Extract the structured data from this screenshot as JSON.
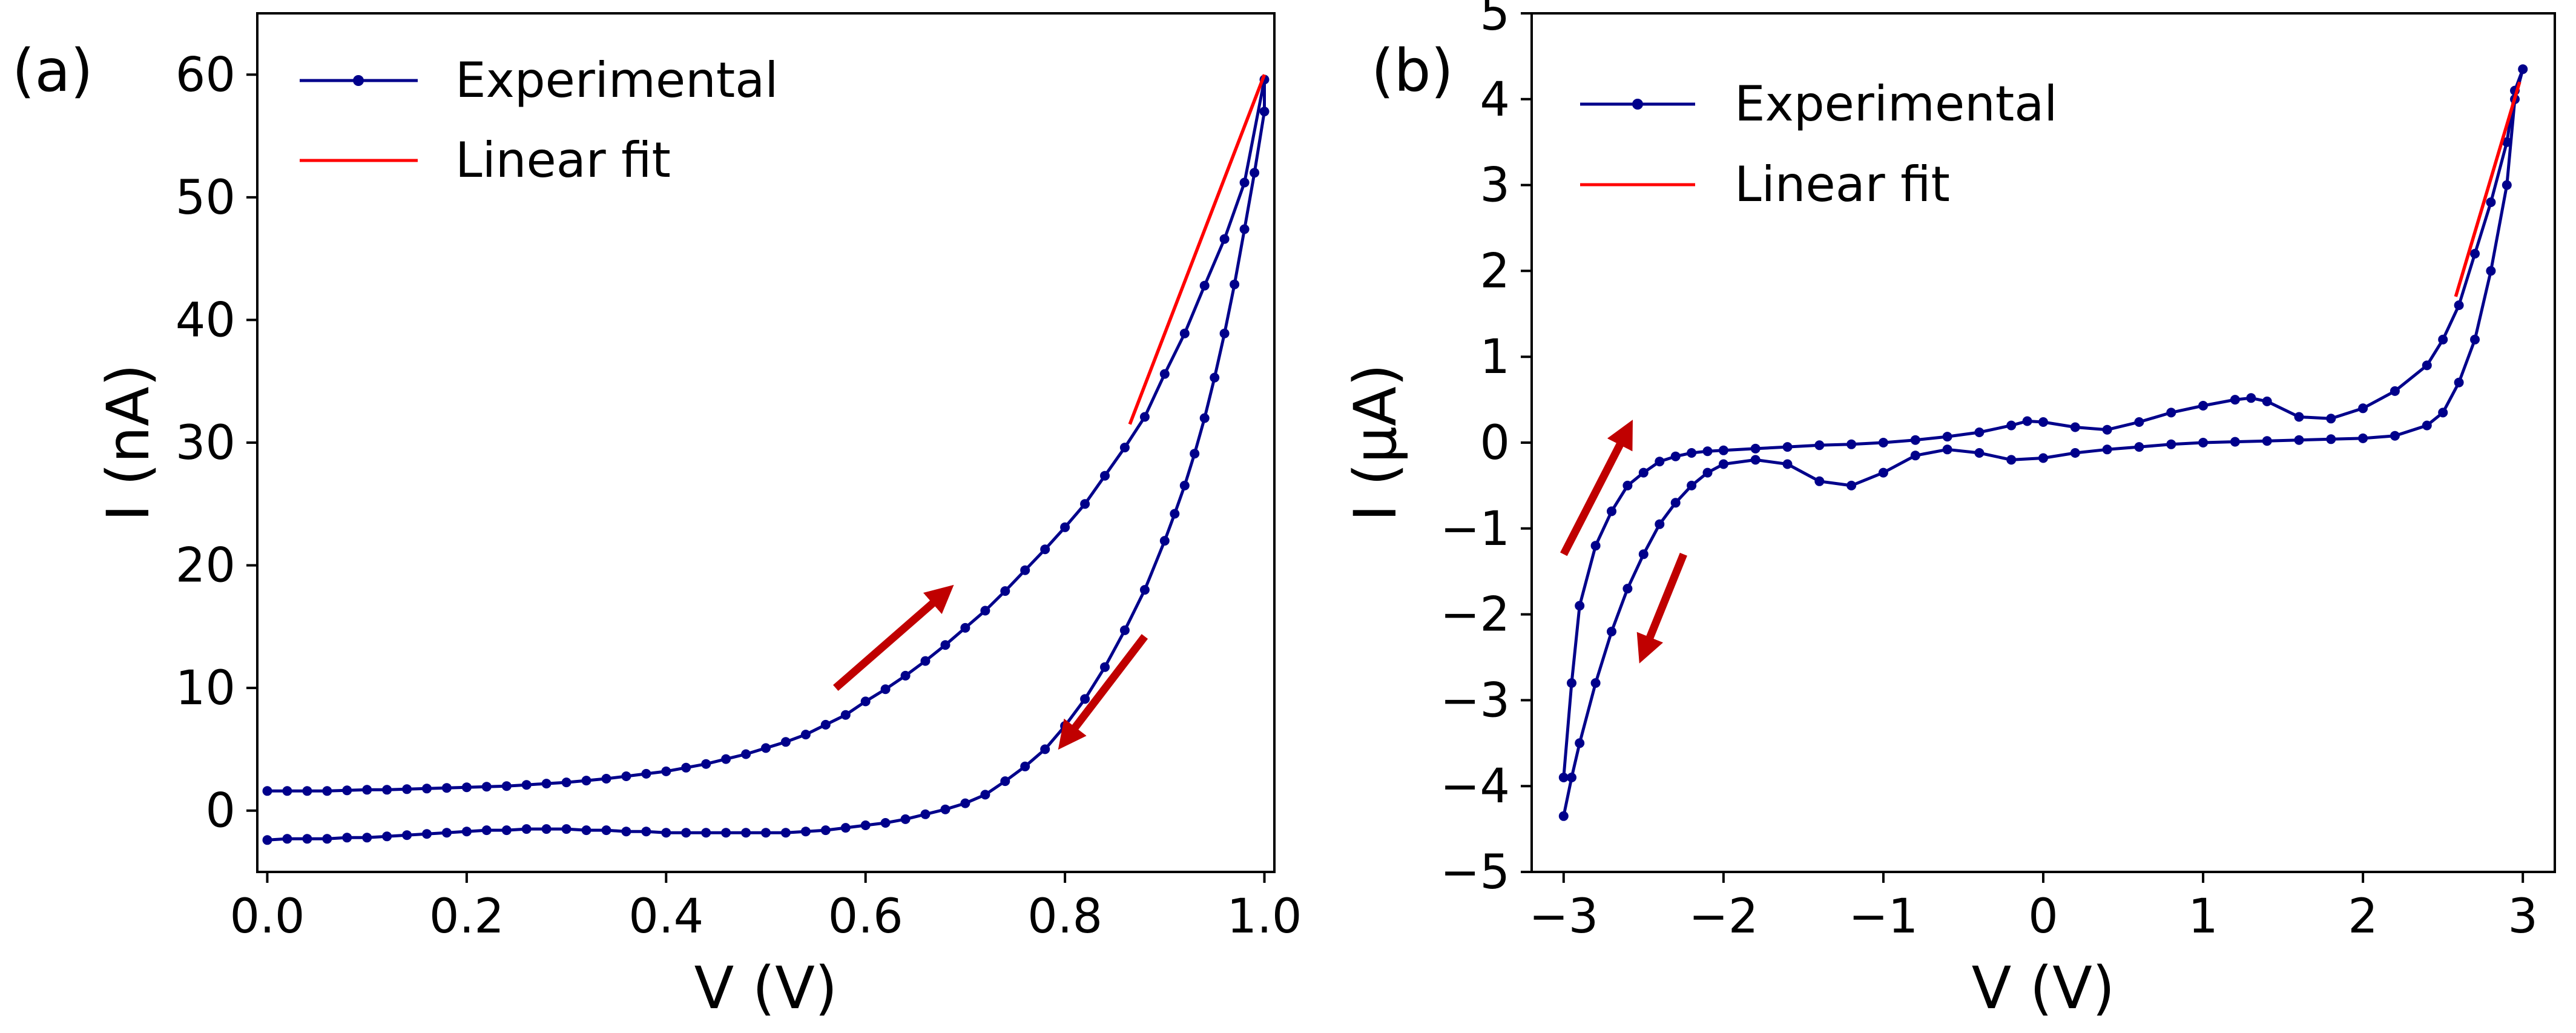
{
  "colors": {
    "experimental": "#00008b",
    "fit": "#ff0000",
    "arrow": "#c00000",
    "axis": "#000000"
  },
  "chart_data": [
    {
      "panel": "(a)",
      "type": "line",
      "xlabel": "V (V)",
      "ylabel": "I (nA)",
      "xlim": [
        -0.01,
        1.01
      ],
      "ylim": [
        -5,
        65
      ],
      "xticks": [
        0.0,
        0.2,
        0.4,
        0.6,
        0.8,
        1.0
      ],
      "xtick_labels": [
        "0.0",
        "0.2",
        "0.4",
        "0.6",
        "0.8",
        "1.0"
      ],
      "yticks": [
        0,
        10,
        20,
        30,
        40,
        50,
        60
      ],
      "ytick_labels": [
        "0",
        "10",
        "20",
        "30",
        "40",
        "50",
        "60"
      ],
      "legend": {
        "placement": "top-left",
        "entries": [
          "Experimental",
          "Linear fit"
        ]
      },
      "series": [
        {
          "name": "Experimental",
          "marker": "dot",
          "x": [
            0.0,
            0.02,
            0.04,
            0.06,
            0.08,
            0.1,
            0.12,
            0.14,
            0.16,
            0.18,
            0.2,
            0.22,
            0.24,
            0.26,
            0.28,
            0.3,
            0.32,
            0.34,
            0.36,
            0.38,
            0.4,
            0.42,
            0.44,
            0.46,
            0.48,
            0.5,
            0.52,
            0.54,
            0.56,
            0.58,
            0.6,
            0.62,
            0.64,
            0.66,
            0.68,
            0.7,
            0.72,
            0.74,
            0.76,
            0.78,
            0.8,
            0.82,
            0.84,
            0.86,
            0.88,
            0.9,
            0.92,
            0.94,
            0.96,
            0.98,
            1.0,
            1.0,
            0.99,
            0.98,
            0.97,
            0.96,
            0.95,
            0.94,
            0.93,
            0.92,
            0.91,
            0.9,
            0.88,
            0.86,
            0.84,
            0.82,
            0.8,
            0.78,
            0.76,
            0.74,
            0.72,
            0.7,
            0.68,
            0.66,
            0.64,
            0.62,
            0.6,
            0.58,
            0.56,
            0.54,
            0.52,
            0.5,
            0.48,
            0.46,
            0.44,
            0.42,
            0.4,
            0.38,
            0.36,
            0.34,
            0.32,
            0.3,
            0.28,
            0.26,
            0.24,
            0.22,
            0.2,
            0.18,
            0.16,
            0.14,
            0.12,
            0.1,
            0.08,
            0.06,
            0.04,
            0.02,
            0.0
          ],
          "y": [
            1.6,
            1.6,
            1.6,
            1.6,
            1.65,
            1.7,
            1.7,
            1.75,
            1.8,
            1.85,
            1.9,
            1.95,
            2.0,
            2.1,
            2.2,
            2.3,
            2.45,
            2.6,
            2.8,
            3.0,
            3.2,
            3.5,
            3.8,
            4.2,
            4.6,
            5.1,
            5.6,
            6.2,
            7.0,
            7.8,
            8.9,
            9.9,
            11.0,
            12.2,
            13.5,
            14.9,
            16.3,
            17.9,
            19.6,
            21.3,
            23.1,
            25.0,
            27.3,
            29.6,
            32.1,
            35.6,
            38.9,
            42.8,
            46.6,
            51.2,
            59.6,
            57.0,
            52.0,
            47.4,
            42.9,
            38.9,
            35.3,
            32.0,
            29.1,
            26.5,
            24.2,
            22.0,
            18.0,
            14.7,
            11.7,
            9.1,
            6.9,
            5.0,
            3.6,
            2.4,
            1.3,
            0.6,
            0.1,
            -0.3,
            -0.7,
            -1.0,
            -1.2,
            -1.4,
            -1.6,
            -1.7,
            -1.8,
            -1.8,
            -1.8,
            -1.8,
            -1.8,
            -1.8,
            -1.8,
            -1.7,
            -1.7,
            -1.6,
            -1.6,
            -1.5,
            -1.5,
            -1.5,
            -1.6,
            -1.6,
            -1.7,
            -1.8,
            -1.9,
            -2.0,
            -2.1,
            -2.2,
            -2.2,
            -2.3,
            -2.3,
            -2.3,
            -2.4
          ]
        },
        {
          "name": "Linear fit",
          "x": [
            0.865,
            1.0
          ],
          "y": [
            31.5,
            60.0
          ]
        }
      ],
      "annotations": [
        {
          "type": "arrow",
          "from": [
            0.57,
            10.0
          ],
          "to": [
            0.68,
            17.8
          ]
        },
        {
          "type": "arrow",
          "from": [
            0.88,
            14.2
          ],
          "to": [
            0.8,
            5.7
          ]
        }
      ]
    },
    {
      "panel": "(b)",
      "type": "line",
      "xlabel": "V (V)",
      "ylabel": "I (μA)",
      "xlim": [
        -3.2,
        3.2
      ],
      "ylim": [
        -5,
        5
      ],
      "xticks": [
        -3,
        -2,
        -1,
        0,
        1,
        2,
        3
      ],
      "xtick_labels": [
        "−3",
        "−2",
        "−1",
        "0",
        "1",
        "2",
        "3"
      ],
      "yticks": [
        -5,
        -4,
        -3,
        -2,
        -1,
        0,
        1,
        2,
        3,
        4,
        5
      ],
      "ytick_labels": [
        "−5",
        "−4",
        "−3",
        "−2",
        "−1",
        "0",
        "1",
        "2",
        "3",
        "4",
        "5"
      ],
      "legend": {
        "placement": "top-left",
        "entries": [
          "Experimental",
          "Linear fit"
        ]
      },
      "series": [
        {
          "name": "Experimental",
          "marker": "dot",
          "x": [
            -3.0,
            -2.95,
            -2.9,
            -2.8,
            -2.7,
            -2.6,
            -2.5,
            -2.4,
            -2.3,
            -2.2,
            -2.1,
            -2.0,
            -1.8,
            -1.6,
            -1.4,
            -1.2,
            -1.0,
            -0.8,
            -0.6,
            -0.4,
            -0.2,
            -0.1,
            0.0,
            0.2,
            0.4,
            0.6,
            0.8,
            1.0,
            1.2,
            1.3,
            1.4,
            1.6,
            1.8,
            2.0,
            2.2,
            2.4,
            2.5,
            2.6,
            2.7,
            2.8,
            2.9,
            2.95,
            3.0,
            2.95,
            2.9,
            2.8,
            2.7,
            2.6,
            2.5,
            2.4,
            2.2,
            2.0,
            1.8,
            1.6,
            1.4,
            1.2,
            1.0,
            0.8,
            0.6,
            0.4,
            0.2,
            0.0,
            -0.2,
            -0.4,
            -0.6,
            -0.8,
            -1.0,
            -1.2,
            -1.4,
            -1.6,
            -1.8,
            -2.0,
            -2.1,
            -2.2,
            -2.3,
            -2.4,
            -2.5,
            -2.6,
            -2.7,
            -2.8,
            -2.9,
            -2.95,
            -3.0
          ],
          "y": [
            -3.9,
            -2.8,
            -1.9,
            -1.2,
            -0.8,
            -0.5,
            -0.35,
            -0.22,
            -0.16,
            -0.12,
            -0.1,
            -0.09,
            -0.07,
            -0.05,
            -0.03,
            -0.02,
            0.0,
            0.03,
            0.07,
            0.12,
            0.2,
            0.25,
            0.24,
            0.18,
            0.15,
            0.24,
            0.35,
            0.43,
            0.5,
            0.52,
            0.48,
            0.3,
            0.28,
            0.4,
            0.6,
            0.9,
            1.2,
            1.6,
            2.2,
            2.8,
            3.5,
            4.1,
            4.35,
            4.0,
            3.0,
            2.0,
            1.2,
            0.7,
            0.35,
            0.2,
            0.08,
            0.05,
            0.04,
            0.03,
            0.02,
            0.01,
            0.0,
            -0.02,
            -0.05,
            -0.08,
            -0.12,
            -0.18,
            -0.2,
            -0.12,
            -0.08,
            -0.15,
            -0.35,
            -0.5,
            -0.45,
            -0.25,
            -0.2,
            -0.25,
            -0.35,
            -0.5,
            -0.7,
            -0.95,
            -1.3,
            -1.7,
            -2.2,
            -2.8,
            -3.5,
            -3.9,
            -4.35
          ]
        },
        {
          "name": "Linear fit",
          "x": [
            2.58,
            2.98
          ],
          "y": [
            1.7,
            4.2
          ]
        }
      ],
      "annotations": [
        {
          "type": "arrow",
          "from": [
            -3.0,
            -1.3
          ],
          "to": [
            -2.6,
            0.15
          ]
        },
        {
          "type": "arrow",
          "from": [
            -2.25,
            -1.3
          ],
          "to": [
            -2.5,
            -2.45
          ]
        }
      ]
    }
  ]
}
